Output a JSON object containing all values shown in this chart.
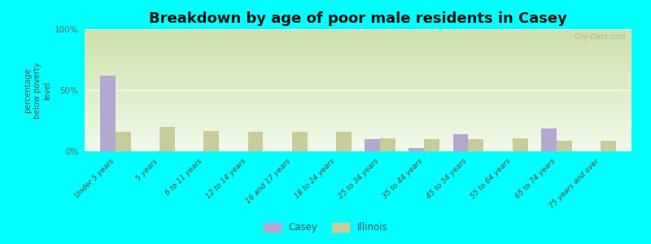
{
  "title": "Breakdown by age of poor male residents in Casey",
  "ylabel": "percentage\nbelow poverty\nlevel",
  "categories": [
    "Under 5 years",
    "5 years",
    "6 to 11 years",
    "12 to 14 years",
    "16 and 17 years",
    "18 to 24 years",
    "25 to 34 years",
    "35 to 44 years",
    "45 to 54 years",
    "55 to 64 years",
    "65 to 74 years",
    "75 years and over"
  ],
  "casey_values": [
    62,
    0,
    0,
    0,
    0,
    0,
    10,
    3,
    14,
    0,
    19,
    0
  ],
  "illinois_values": [
    16,
    20,
    17,
    16,
    16,
    16,
    11,
    10,
    10,
    11,
    9,
    9
  ],
  "casey_color": "#b3a8d0",
  "illinois_color": "#c8cc99",
  "background_color": "#00ffff",
  "grad_top": "#cce0a8",
  "grad_bottom": "#f0faec",
  "ylim": [
    0,
    100
  ],
  "yticks": [
    0,
    50,
    100
  ],
  "ytick_labels": [
    "0%",
    "50%",
    "100%"
  ],
  "bar_width": 0.35,
  "legend_casey": "Casey",
  "legend_illinois": "Illinois",
  "title_fontsize": 13,
  "watermark": "City-Data.com"
}
